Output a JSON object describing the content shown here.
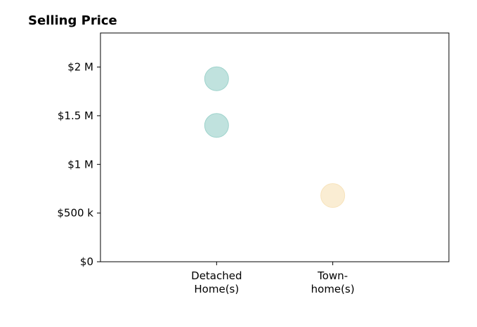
{
  "chart_data": {
    "type": "scatter",
    "title": "Selling Price",
    "xlabel": "",
    "ylabel": "",
    "categories": [
      "Detached\nHome(s)",
      "Town-\nhome(s)"
    ],
    "series": [
      {
        "category": "Detached\nHome(s)",
        "color": "#9ed3cc",
        "values": [
          1880000,
          1400000
        ]
      },
      {
        "category": "Town-\nhome(s)",
        "color": "#f7e3bb",
        "values": [
          680000
        ]
      }
    ],
    "y_ticks": [
      0,
      500000,
      1000000,
      1500000,
      2000000
    ],
    "y_tick_labels": [
      "$0",
      "$500 k",
      "$1 M",
      "$1.5 M",
      "$2 M"
    ],
    "ylim": [
      0,
      2350000
    ],
    "grid": false,
    "legend": "none"
  }
}
